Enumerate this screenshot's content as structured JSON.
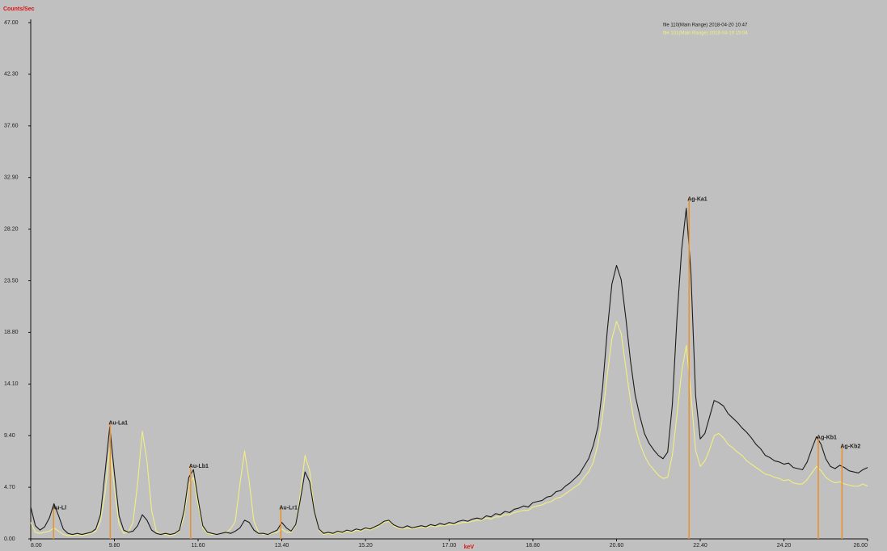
{
  "chart_data": {
    "type": "line",
    "ylabel": "Counts/Sec",
    "xlabel": "keV",
    "xlim": [
      8,
      26
    ],
    "ylim": [
      0,
      47
    ],
    "xticks": [
      {
        "value": 8,
        "label": "8.00"
      },
      {
        "value": 9.8,
        "label": "9.80"
      },
      {
        "value": 11.6,
        "label": "11.60"
      },
      {
        "value": 13.4,
        "label": "13.40"
      },
      {
        "value": 15.2,
        "label": "15.20"
      },
      {
        "value": 17,
        "label": "17.00"
      },
      {
        "value": 18.8,
        "label": "18.80"
      },
      {
        "value": 20.6,
        "label": "20.60"
      },
      {
        "value": 22.4,
        "label": "22.40"
      },
      {
        "value": 24.2,
        "label": "24.20"
      },
      {
        "value": 26,
        "label": "26.00"
      }
    ],
    "yticks": [
      {
        "value": 0,
        "label": "0.00"
      },
      {
        "value": 4.7,
        "label": "4.70"
      },
      {
        "value": 9.4,
        "label": "9.40"
      },
      {
        "value": 14.1,
        "label": "14.10"
      },
      {
        "value": 18.8,
        "label": "18.80"
      },
      {
        "value": 23.5,
        "label": "23.50"
      },
      {
        "value": 28.2,
        "label": "28.20"
      },
      {
        "value": 32.9,
        "label": "32.90"
      },
      {
        "value": 37.6,
        "label": "37.60"
      },
      {
        "value": 42.3,
        "label": "42.30"
      },
      {
        "value": 47,
        "label": "47.00"
      }
    ],
    "grid": false,
    "x": [
      8.0,
      8.1,
      8.2,
      8.3,
      8.4,
      8.5,
      8.6,
      8.7,
      8.8,
      8.9,
      9.0,
      9.1,
      9.2,
      9.3,
      9.4,
      9.5,
      9.6,
      9.7,
      9.8,
      9.9,
      10.0,
      10.1,
      10.2,
      10.3,
      10.4,
      10.5,
      10.6,
      10.7,
      10.8,
      10.9,
      11.0,
      11.1,
      11.2,
      11.3,
      11.4,
      11.5,
      11.6,
      11.7,
      11.8,
      11.9,
      12.0,
      12.1,
      12.2,
      12.3,
      12.4,
      12.5,
      12.6,
      12.7,
      12.8,
      12.9,
      13.0,
      13.1,
      13.2,
      13.3,
      13.4,
      13.5,
      13.6,
      13.7,
      13.8,
      13.9,
      14.0,
      14.1,
      14.2,
      14.3,
      14.4,
      14.5,
      14.6,
      14.7,
      14.8,
      14.9,
      15.0,
      15.1,
      15.2,
      15.3,
      15.4,
      15.5,
      15.6,
      15.7,
      15.8,
      15.9,
      16.0,
      16.1,
      16.2,
      16.3,
      16.4,
      16.5,
      16.6,
      16.7,
      16.8,
      16.9,
      17.0,
      17.1,
      17.2,
      17.3,
      17.4,
      17.5,
      17.6,
      17.7,
      17.8,
      17.9,
      18.0,
      18.1,
      18.2,
      18.3,
      18.4,
      18.5,
      18.6,
      18.7,
      18.8,
      18.9,
      19.0,
      19.1,
      19.2,
      19.3,
      19.4,
      19.5,
      19.6,
      19.7,
      19.8,
      19.9,
      20.0,
      20.1,
      20.2,
      20.3,
      20.4,
      20.5,
      20.6,
      20.7,
      20.8,
      20.9,
      21.0,
      21.1,
      21.2,
      21.3,
      21.4,
      21.5,
      21.6,
      21.7,
      21.8,
      21.9,
      22.0,
      22.1,
      22.2,
      22.3,
      22.4,
      22.5,
      22.6,
      22.7,
      22.8,
      22.9,
      23.0,
      23.1,
      23.2,
      23.3,
      23.4,
      23.5,
      23.6,
      23.7,
      23.8,
      23.9,
      24.0,
      24.1,
      24.2,
      24.3,
      24.4,
      24.5,
      24.6,
      24.7,
      24.8,
      24.9,
      25.0,
      25.1,
      25.2,
      25.3,
      25.4,
      25.5,
      25.6,
      25.7,
      25.8,
      25.9,
      26.0
    ],
    "series": [
      {
        "name": "file 110(Main Range) 2018-04-20 10:47",
        "color": "#1a1a1a",
        "values": [
          2.9,
          1.2,
          0.8,
          1.1,
          1.9,
          3.2,
          2.1,
          0.9,
          0.5,
          0.4,
          0.5,
          0.4,
          0.5,
          0.6,
          0.9,
          2.2,
          6.1,
          10.2,
          6.0,
          2.1,
          0.8,
          0.6,
          0.7,
          1.2,
          2.2,
          1.7,
          0.8,
          0.5,
          0.4,
          0.5,
          0.4,
          0.5,
          0.8,
          2.6,
          5.6,
          6.3,
          3.6,
          1.2,
          0.6,
          0.5,
          0.4,
          0.5,
          0.6,
          0.5,
          0.7,
          1.0,
          1.7,
          1.5,
          0.8,
          0.5,
          0.5,
          0.4,
          0.6,
          0.8,
          1.5,
          1.0,
          0.7,
          1.3,
          3.6,
          6.1,
          5.2,
          2.5,
          0.9,
          0.5,
          0.6,
          0.5,
          0.7,
          0.6,
          0.8,
          0.7,
          0.9,
          0.8,
          1.0,
          0.9,
          1.1,
          1.3,
          1.6,
          1.7,
          1.3,
          1.1,
          1.0,
          1.2,
          1.0,
          1.1,
          1.2,
          1.1,
          1.3,
          1.2,
          1.4,
          1.3,
          1.5,
          1.4,
          1.6,
          1.7,
          1.6,
          1.8,
          1.9,
          1.8,
          2.1,
          2.0,
          2.3,
          2.2,
          2.5,
          2.4,
          2.7,
          2.8,
          3.0,
          2.9,
          3.3,
          3.4,
          3.5,
          3.8,
          3.9,
          4.3,
          4.4,
          4.8,
          5.1,
          5.5,
          5.9,
          6.6,
          7.3,
          8.5,
          10.2,
          13.8,
          18.9,
          23.2,
          24.9,
          23.6,
          20.1,
          16.2,
          13.1,
          11.2,
          9.6,
          8.7,
          8.1,
          7.6,
          7.3,
          7.9,
          12.2,
          20.1,
          26.3,
          30.1,
          24.2,
          13.1,
          9.1,
          9.6,
          11.1,
          12.6,
          12.4,
          12.1,
          11.4,
          11.0,
          10.6,
          10.1,
          9.7,
          9.2,
          8.6,
          8.2,
          7.6,
          7.4,
          7.1,
          7.0,
          6.8,
          6.9,
          6.5,
          6.4,
          6.3,
          7.0,
          8.2,
          9.3,
          8.6,
          7.3,
          6.6,
          6.4,
          6.7,
          6.5,
          6.2,
          6.1,
          6.0,
          6.3,
          6.5
        ]
      },
      {
        "name": "file 101(Main Range) 2018-04-19 15:04",
        "color": "#f2ee80",
        "values": [
          1.5,
          0.6,
          0.5,
          0.6,
          0.7,
          1.0,
          0.7,
          0.4,
          0.3,
          0.3,
          0.4,
          0.3,
          0.4,
          0.5,
          0.7,
          1.6,
          4.2,
          8.3,
          4.6,
          1.3,
          0.5,
          0.6,
          1.5,
          5.1,
          9.8,
          7.1,
          2.6,
          0.7,
          0.4,
          0.4,
          0.3,
          0.4,
          0.7,
          2.1,
          5.0,
          5.6,
          3.1,
          1.0,
          0.5,
          0.4,
          0.4,
          0.5,
          0.6,
          0.9,
          1.6,
          5.0,
          8.0,
          5.2,
          1.6,
          0.6,
          0.4,
          0.4,
          0.5,
          0.6,
          0.9,
          0.6,
          0.6,
          1.2,
          4.1,
          7.6,
          6.2,
          2.6,
          0.8,
          0.4,
          0.5,
          0.4,
          0.6,
          0.5,
          0.7,
          0.6,
          0.8,
          0.7,
          0.9,
          0.8,
          1.0,
          1.2,
          1.5,
          1.6,
          1.2,
          1.0,
          0.9,
          1.0,
          0.9,
          1.0,
          1.1,
          1.0,
          1.2,
          1.1,
          1.2,
          1.2,
          1.3,
          1.3,
          1.4,
          1.5,
          1.5,
          1.6,
          1.7,
          1.7,
          1.9,
          1.8,
          2.0,
          2.0,
          2.2,
          2.2,
          2.4,
          2.5,
          2.6,
          2.6,
          2.9,
          3.0,
          3.1,
          3.3,
          3.4,
          3.7,
          3.8,
          4.1,
          4.4,
          4.7,
          5.0,
          5.6,
          6.1,
          7.0,
          8.6,
          11.2,
          14.9,
          18.2,
          19.8,
          18.7,
          15.6,
          12.6,
          10.2,
          8.7,
          7.6,
          6.8,
          6.3,
          5.8,
          5.5,
          5.6,
          7.6,
          11.3,
          15.2,
          17.6,
          13.2,
          8.1,
          6.6,
          7.1,
          8.1,
          9.4,
          9.6,
          9.2,
          8.6,
          8.3,
          7.9,
          7.6,
          7.1,
          6.8,
          6.5,
          6.2,
          5.9,
          5.8,
          5.6,
          5.5,
          5.3,
          5.4,
          5.1,
          5.0,
          5.0,
          5.4,
          6.0,
          6.6,
          6.2,
          5.6,
          5.3,
          5.1,
          5.2,
          5.0,
          4.9,
          4.8,
          4.8,
          5.0,
          4.8
        ]
      }
    ],
    "annotation_color": "#e8902a",
    "annotations": [
      {
        "text": "Au-Ll",
        "x": 8.49,
        "y": 2.9
      },
      {
        "text": "Au-La1",
        "x": 9.71,
        "y": 10.6
      },
      {
        "text": "Au-Lb1",
        "x": 11.44,
        "y": 6.7
      },
      {
        "text": "Au-Lr1",
        "x": 13.38,
        "y": 2.9
      },
      {
        "text": "Ag-Ka1",
        "x": 22.16,
        "y": 31
      },
      {
        "text": "Ag-Kb1",
        "x": 24.94,
        "y": 9.3
      },
      {
        "text": "Ag-Kb2",
        "x": 25.45,
        "y": 8.5
      }
    ]
  }
}
